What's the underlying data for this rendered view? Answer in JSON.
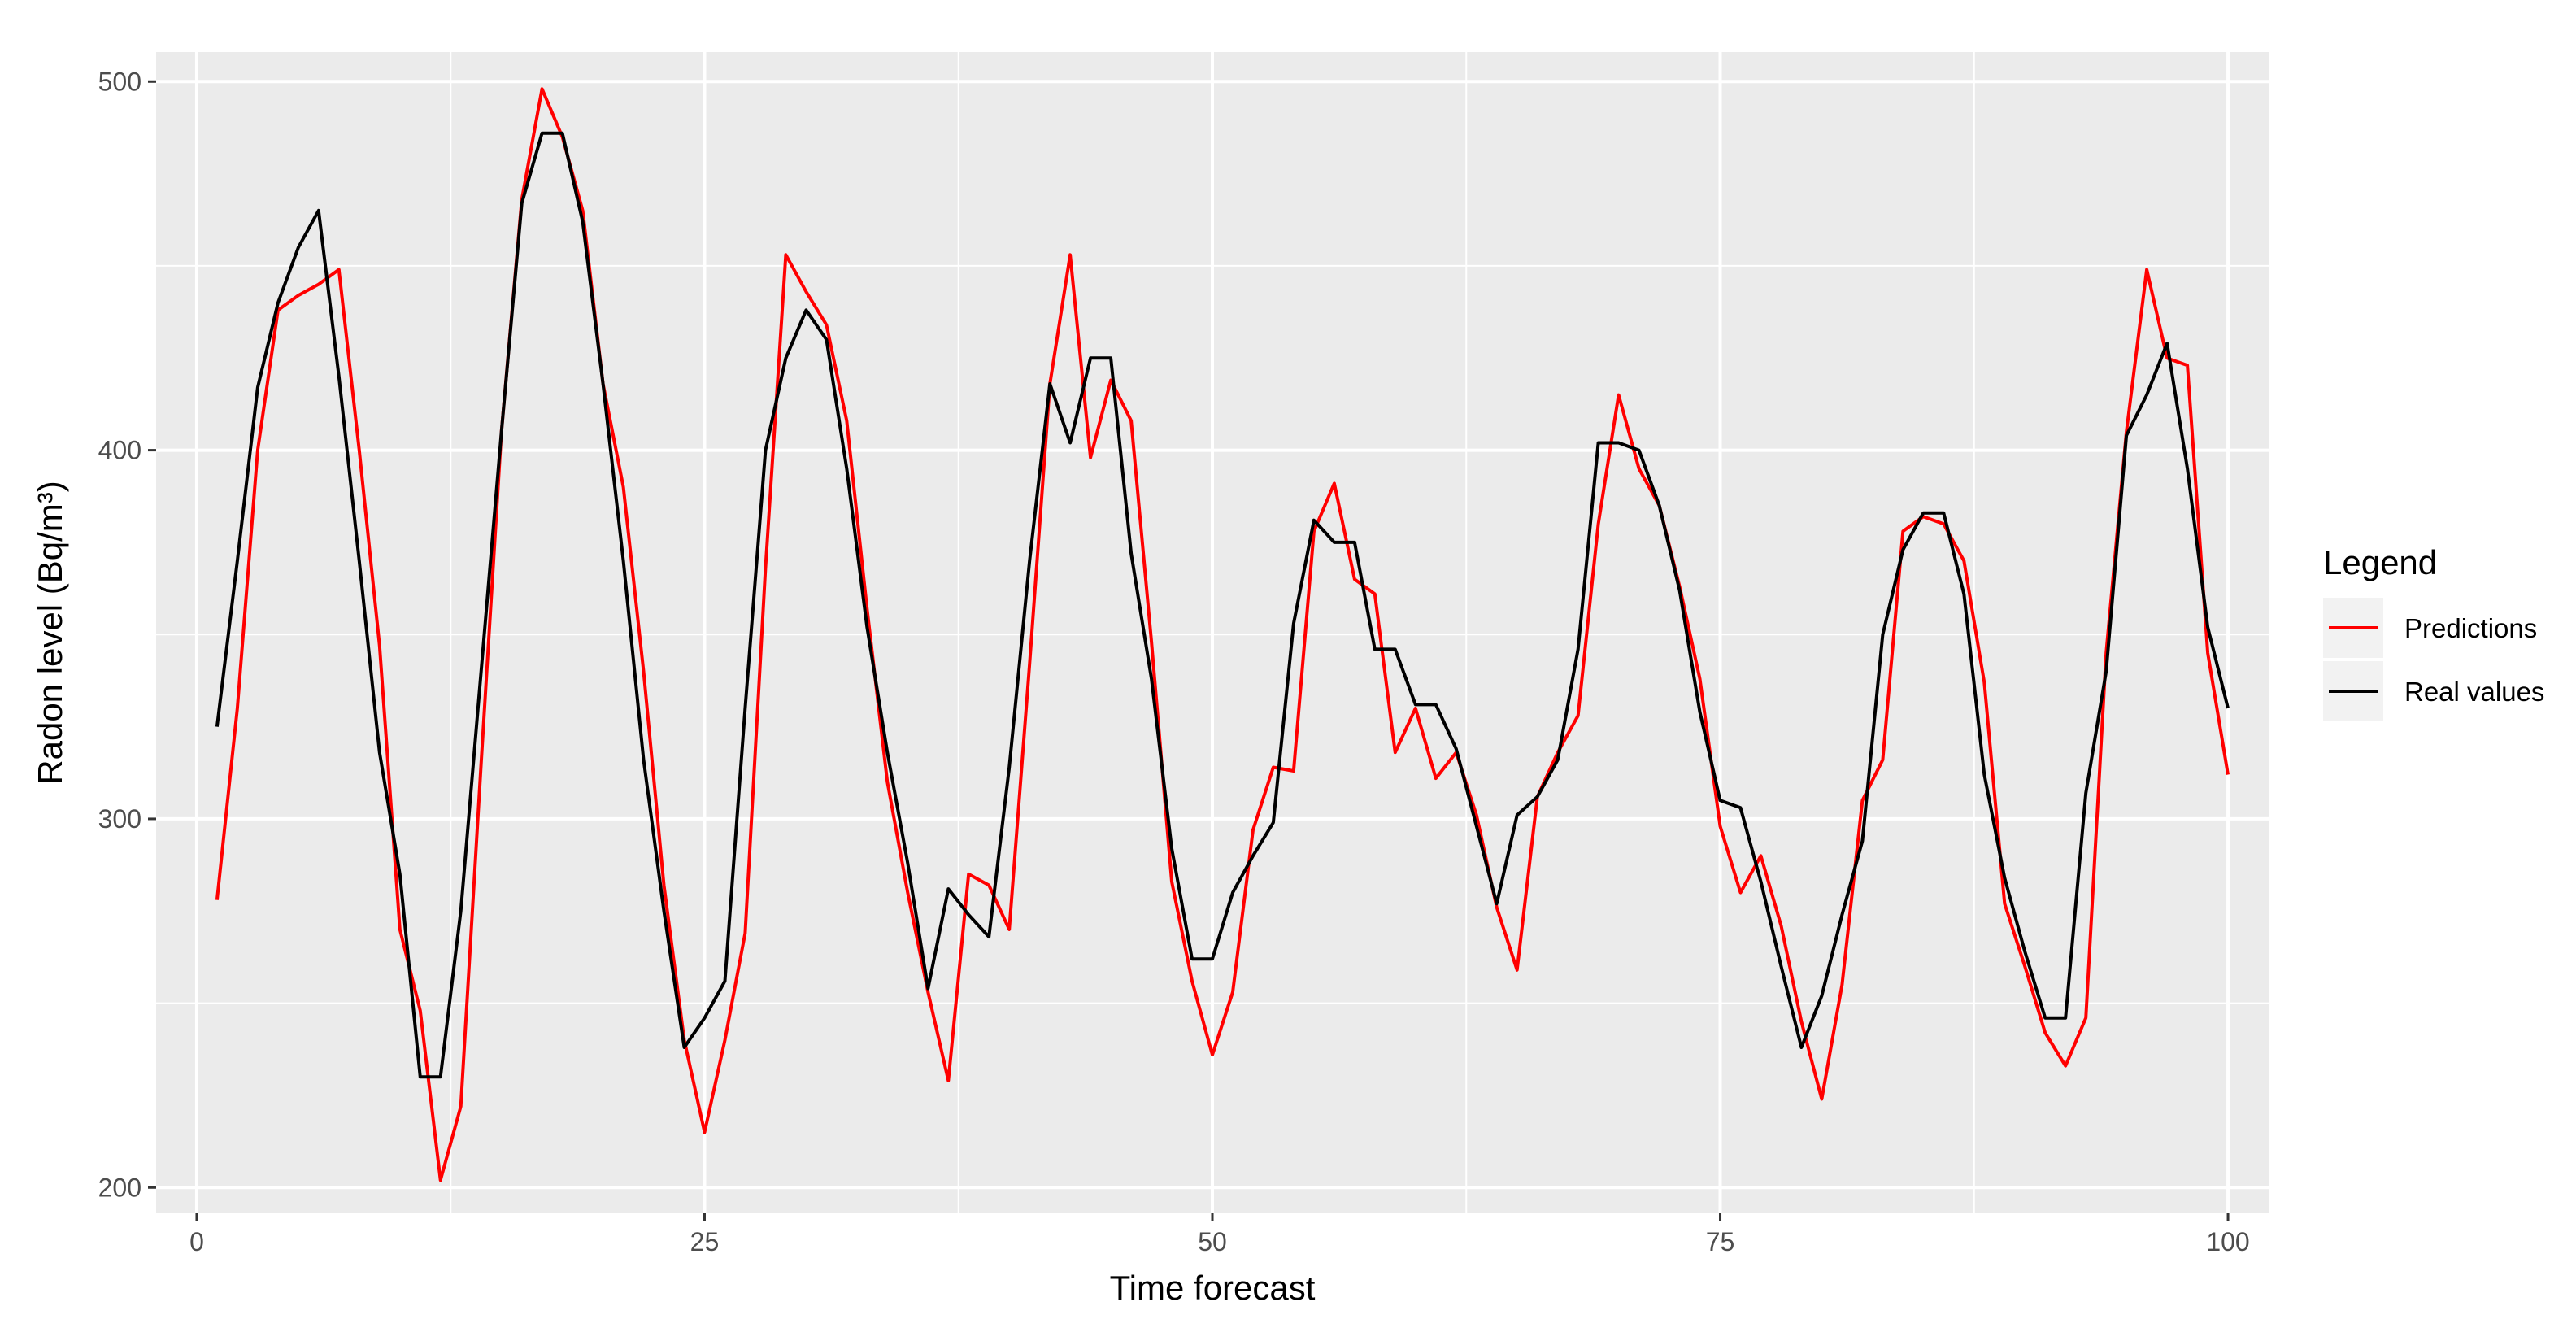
{
  "chart_data": {
    "type": "line",
    "xlabel": "Time forecast",
    "ylabel": "Radon level (Bq/m³)",
    "xlim": [
      -2,
      102
    ],
    "ylim": [
      193,
      508
    ],
    "x_ticks": [
      0,
      25,
      50,
      75,
      100
    ],
    "y_ticks": [
      200,
      300,
      400,
      500
    ],
    "grid": true,
    "legend": {
      "title": "Legend",
      "position": "right"
    },
    "x": [
      1,
      2,
      3,
      4,
      5,
      6,
      7,
      8,
      9,
      10,
      11,
      12,
      13,
      14,
      15,
      16,
      17,
      18,
      19,
      20,
      21,
      22,
      23,
      24,
      25,
      26,
      27,
      28,
      29,
      30,
      31,
      32,
      33,
      34,
      35,
      36,
      37,
      38,
      39,
      40,
      41,
      42,
      43,
      44,
      45,
      46,
      47,
      48,
      49,
      50,
      51,
      52,
      53,
      54,
      55,
      56,
      57,
      58,
      59,
      60,
      61,
      62,
      63,
      64,
      65,
      66,
      67,
      68,
      69,
      70,
      71,
      72,
      73,
      74,
      75,
      76,
      77,
      78,
      79,
      80,
      81,
      82,
      83,
      84,
      85,
      86,
      87,
      88,
      89,
      90,
      91,
      92,
      93,
      94,
      95,
      96,
      97,
      98,
      99,
      100
    ],
    "series": [
      {
        "name": "Predictions",
        "color": "#ff0000",
        "values": [
          278,
          330,
          400,
          438,
          442,
          445,
          449,
          400,
          347,
          270,
          248,
          202,
          222,
          315,
          405,
          468,
          498,
          485,
          465,
          418,
          390,
          340,
          282,
          240,
          215,
          240,
          269,
          368,
          453,
          443,
          434,
          408,
          357,
          310,
          280,
          253,
          229,
          285,
          282,
          270,
          342,
          418,
          453,
          398,
          419,
          408,
          348,
          283,
          256,
          236,
          253,
          297,
          314,
          313,
          378,
          391,
          365,
          361,
          318,
          330,
          311,
          318,
          301,
          276,
          259,
          306,
          318,
          328,
          380,
          415,
          395,
          385,
          363,
          338,
          298,
          280,
          290,
          271,
          245,
          224,
          255,
          305,
          316,
          378,
          382,
          380,
          370,
          337,
          277,
          260,
          242,
          233,
          246,
          345,
          405,
          449,
          425,
          423,
          345,
          312
        ]
      },
      {
        "name": "Real values",
        "color": "#000000",
        "values": [
          325,
          370,
          417,
          440,
          455,
          465,
          420,
          370,
          318,
          285,
          230,
          230,
          275,
          340,
          405,
          467,
          486,
          486,
          462,
          418,
          370,
          316,
          275,
          238,
          246,
          256,
          330,
          400,
          425,
          438,
          430,
          395,
          352,
          318,
          288,
          254,
          281,
          274,
          268,
          314,
          370,
          418,
          402,
          425,
          425,
          372,
          338,
          292,
          262,
          262,
          280,
          290,
          299,
          353,
          381,
          375,
          375,
          346,
          346,
          331,
          331,
          319,
          298,
          277,
          301,
          306,
          316,
          346,
          402,
          402,
          400,
          385,
          362,
          329,
          305,
          303,
          283,
          260,
          238,
          252,
          274,
          294,
          350,
          373,
          383,
          383,
          361,
          312,
          284,
          264,
          246,
          246,
          307,
          340,
          404,
          415,
          429,
          395,
          352,
          330
        ]
      }
    ]
  }
}
